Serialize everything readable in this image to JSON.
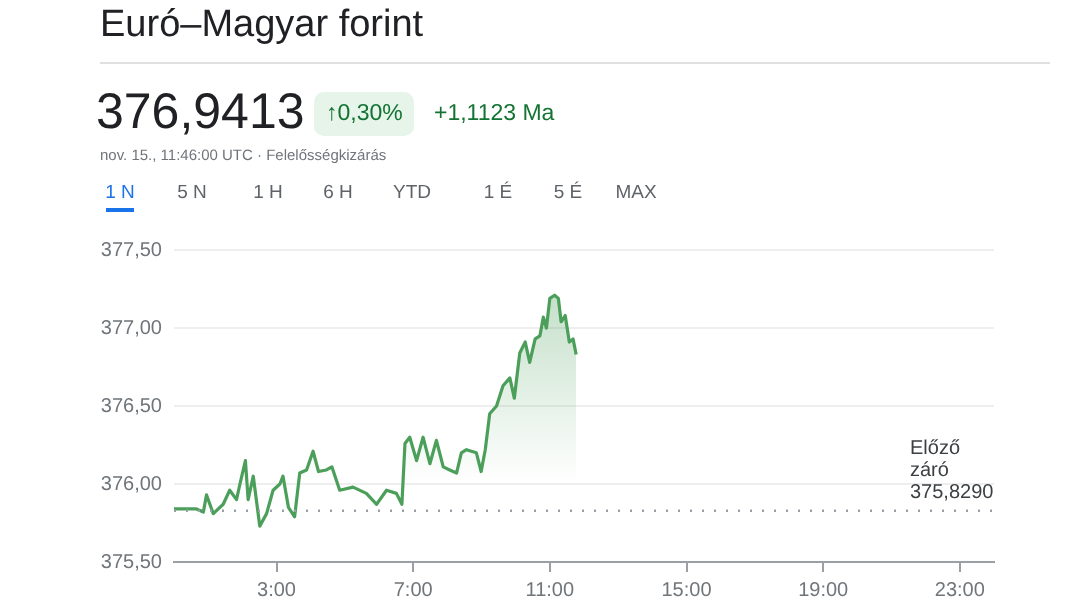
{
  "chart_data": {
    "type": "area",
    "title": "Euró–Magyar forint",
    "annotations": [
      "376,9413",
      "↑0,30%",
      "+1,1123 Ma",
      "nov. 15., 11:46:00 UTC · Felelősségkizárás",
      "1 N",
      "5 N",
      "1 H",
      "6 H",
      "YTD",
      "1 É",
      "5 É",
      "MAX"
    ],
    "x": [
      0,
      0.66,
      0.86,
      0.95,
      1.15,
      1.44,
      1.63,
      1.83,
      1.93,
      2.09,
      2.17,
      2.32,
      2.51,
      2.71,
      2.9,
      3.1,
      3.19,
      3.35,
      3.53,
      3.68,
      3.88,
      4.07,
      4.23,
      4.46,
      4.62,
      4.85,
      5.24,
      5.63,
      5.93,
      6.22,
      6.51,
      6.67,
      6.76,
      6.9,
      7.1,
      7.29,
      7.49,
      7.68,
      7.88,
      8.07,
      8.27,
      8.41,
      8.56,
      8.85,
      8.99,
      9.11,
      9.24,
      9.44,
      9.63,
      9.83,
      9.96,
      10.12,
      10.28,
      10.41,
      10.57,
      10.71,
      10.81,
      10.9,
      11.0,
      11.14,
      11.25,
      11.33,
      11.45,
      11.57,
      11.68,
      11.77
    ],
    "series": [
      {
        "color": "#4c9f5a",
        "values": [
          375.84,
          375.84,
          375.82,
          375.93,
          375.81,
          375.87,
          375.96,
          375.9,
          376.0,
          376.15,
          375.9,
          376.05,
          375.73,
          375.81,
          375.96,
          376.0,
          376.05,
          375.85,
          375.79,
          376.07,
          376.09,
          376.21,
          376.08,
          376.09,
          376.11,
          375.96,
          375.98,
          375.94,
          375.87,
          375.96,
          375.94,
          375.87,
          376.26,
          376.3,
          376.15,
          376.3,
          376.13,
          376.28,
          376.11,
          376.09,
          376.07,
          376.2,
          376.22,
          376.2,
          376.08,
          376.22,
          376.45,
          376.5,
          376.63,
          376.68,
          376.55,
          376.84,
          376.91,
          376.78,
          376.93,
          376.95,
          377.07,
          377.0,
          377.19,
          377.21,
          377.19,
          377.04,
          377.08,
          376.91,
          376.93,
          376.83
        ]
      }
    ],
    "xlim": [
      0,
      24
    ],
    "xticks": [
      {
        "value": 3,
        "label": "3:00"
      },
      {
        "value": 7,
        "label": "7:00"
      },
      {
        "value": 11,
        "label": "11:00"
      },
      {
        "value": 15,
        "label": "15:00"
      },
      {
        "value": 19,
        "label": "19:00"
      },
      {
        "value": 23,
        "label": "23:00"
      }
    ],
    "ylim": [
      375.5,
      377.5
    ],
    "yticks": [
      {
        "value": 375.5,
        "label": "375,50"
      },
      {
        "value": 376,
        "label": "376,00"
      },
      {
        "value": 376.5,
        "label": "376,50"
      },
      {
        "value": 377,
        "label": "377,00"
      },
      {
        "value": 377.5,
        "label": "377,50"
      }
    ],
    "ref_lines": [
      {
        "axis": "y",
        "value": 375.829,
        "label": "Előző záró 375,8290",
        "color": "#9aa0a6",
        "line_style": "dotted"
      }
    ],
    "grid": "y",
    "legend": false
  }
}
